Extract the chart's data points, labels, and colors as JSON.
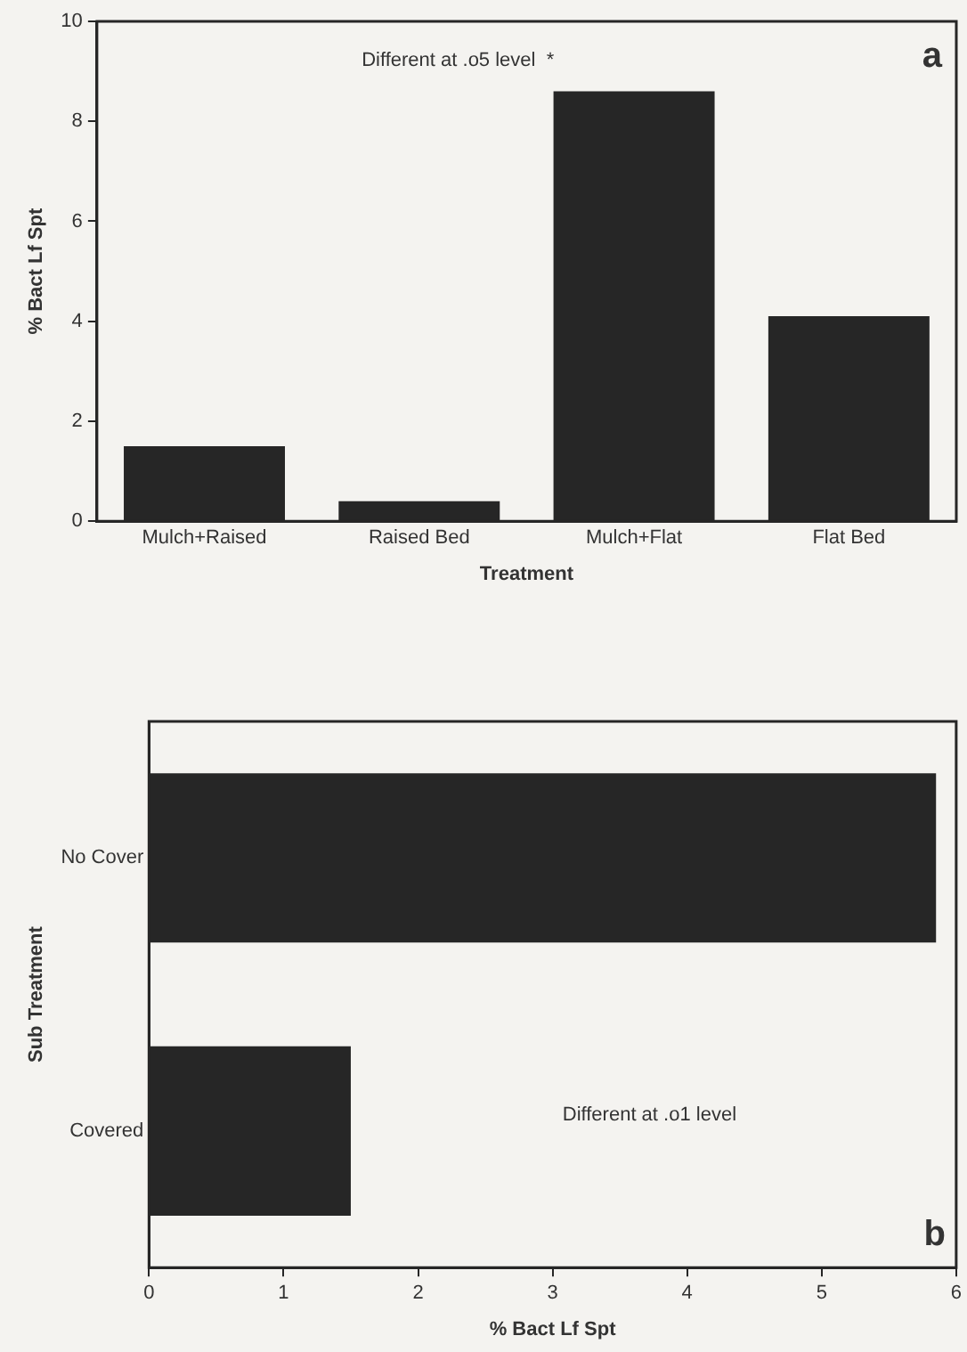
{
  "chart_data": [
    {
      "type": "bar",
      "categories": [
        "Mulch+Raised",
        "Raised Bed",
        "Mulch+Flat",
        "Flat Bed"
      ],
      "values": [
        1.5,
        0.4,
        8.6,
        4.1
      ],
      "color": "#262626",
      "xlabel": "Treatment",
      "ylabel": "% Bact Lf Spt",
      "ylim": [
        0,
        10
      ],
      "yticks": [
        0,
        2,
        4,
        6,
        8,
        10
      ],
      "grid": false,
      "legend": false,
      "annotations": [
        "Different at .o5 level  *",
        "a"
      ]
    },
    {
      "type": "bar",
      "orientation": "horizontal",
      "categories": [
        "No Cover",
        "Covered"
      ],
      "values": [
        5.85,
        1.5
      ],
      "color": "#262626",
      "xlabel": "% Bact Lf Spt",
      "ylabel": "Sub Treatment",
      "xlim": [
        0,
        6
      ],
      "xticks": [
        0,
        1,
        2,
        3,
        4,
        5,
        6
      ],
      "grid": false,
      "legend": false,
      "annotations": [
        "Different at .o1 level",
        "b"
      ]
    }
  ]
}
